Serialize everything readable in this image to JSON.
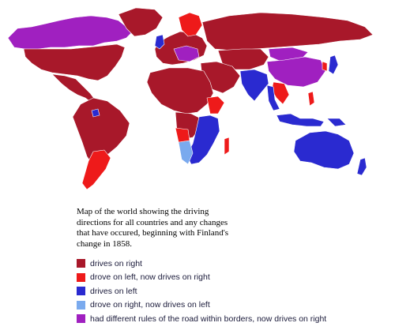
{
  "caption": "Map of the world showing the driving\ndirections for all countries and any changes\nthat have occured, beginning with Finland's\nchange in 1858.",
  "colors": {
    "drives_right": "#a8182a",
    "changed_to_right": "#ee1a1a",
    "drives_left": "#2a2ad0",
    "changed_to_left": "#7aaaee",
    "mixed_now_right": "#a020c0",
    "background": "#ffffff",
    "border": "#ffffff"
  },
  "legend": [
    {
      "key": "drives_right",
      "label": "drives on right"
    },
    {
      "key": "changed_to_right",
      "label": "drove on left, now drives on right"
    },
    {
      "key": "drives_left",
      "label": "drives on left"
    },
    {
      "key": "changed_to_left",
      "label": "drove on right, now drives on left"
    },
    {
      "key": "mixed_now_right",
      "label": "had different rules of the road within borders, now drives on right"
    }
  ]
}
